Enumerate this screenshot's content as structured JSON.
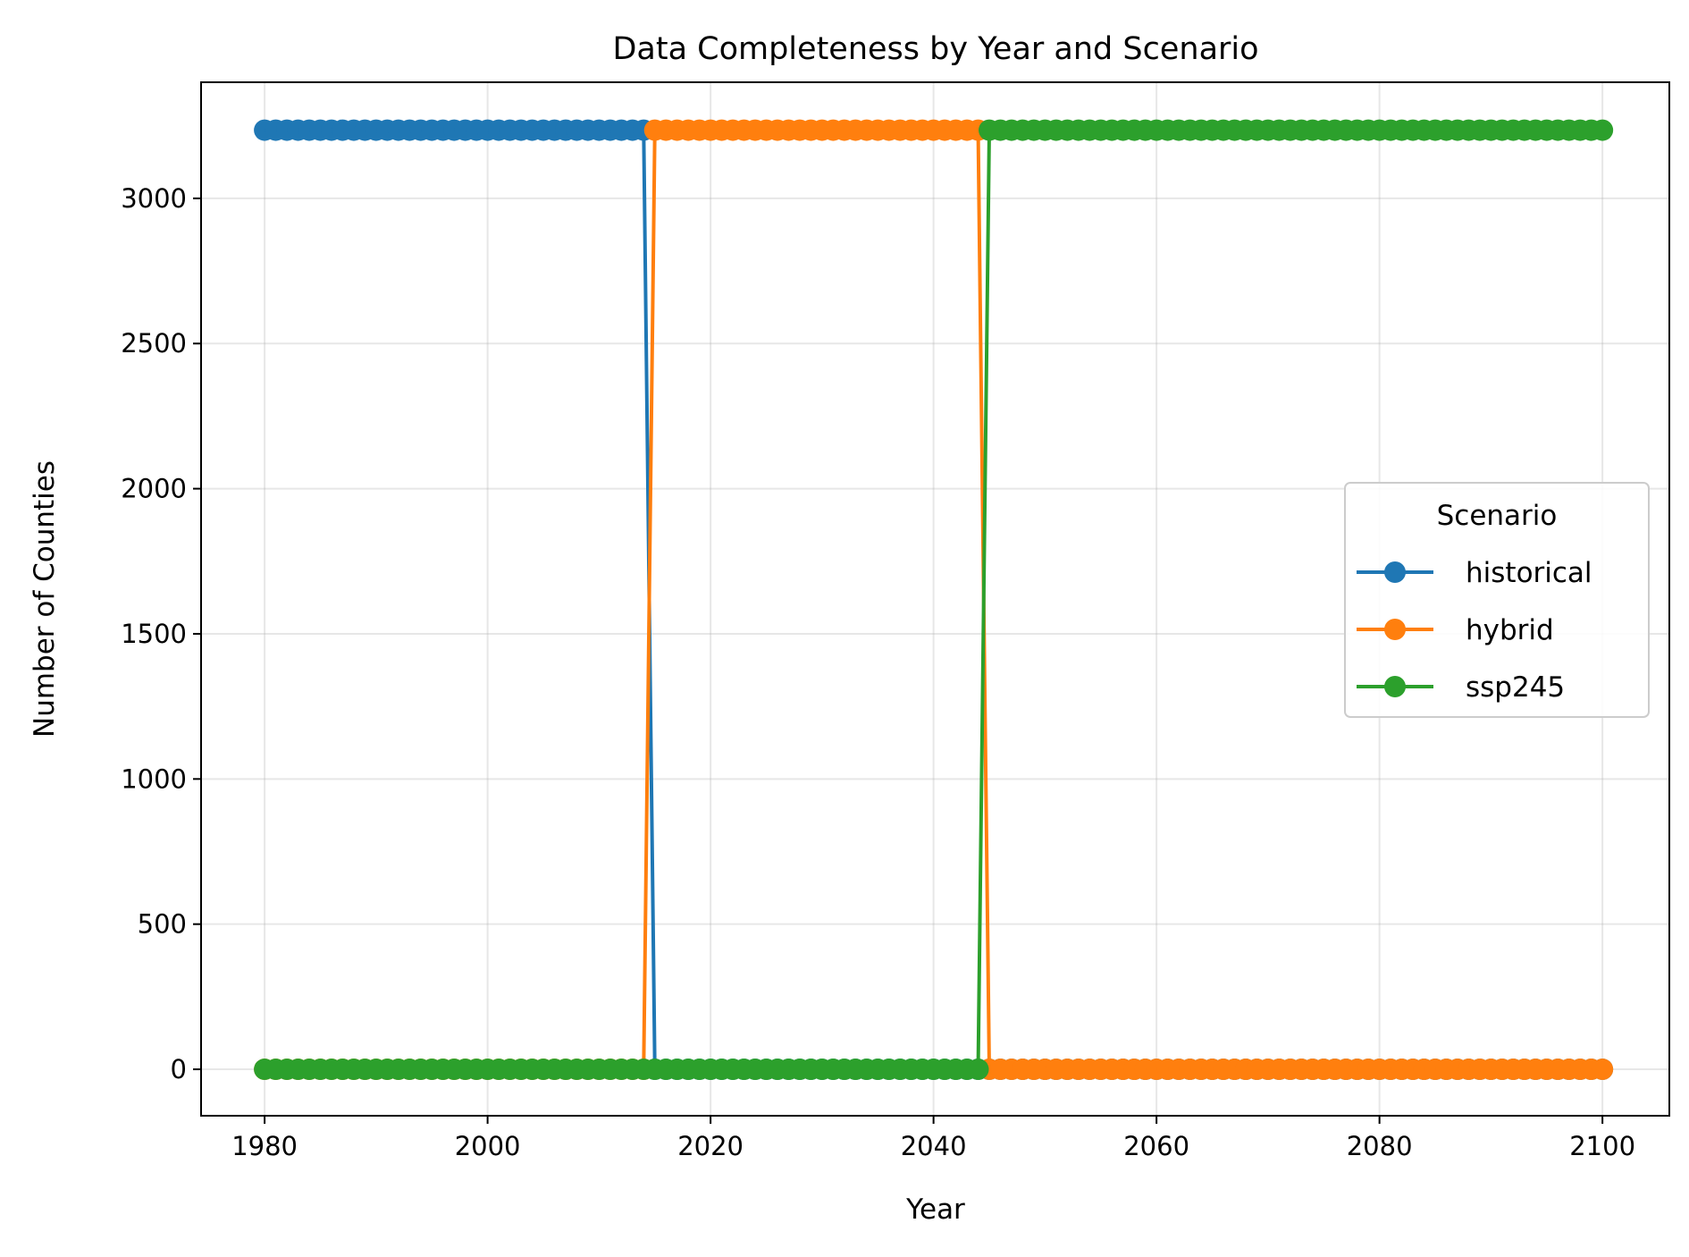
{
  "chart_data": {
    "type": "line",
    "title": "Data Completeness by Year and Scenario",
    "xlabel": "Year",
    "ylabel": "Number of Counties",
    "xlim": [
      1974.3,
      2106
    ],
    "ylim": [
      -160,
      3400
    ],
    "xticks": [
      1980,
      2000,
      2020,
      2040,
      2060,
      2080,
      2100
    ],
    "yticks": [
      0,
      500,
      1000,
      1500,
      2000,
      2500,
      3000
    ],
    "grid": true,
    "legend": {
      "title": "Scenario",
      "placement": "center-right"
    },
    "series": [
      {
        "name": "historical",
        "color": "#1f77b4",
        "x_start": 1980,
        "x_end": 2100,
        "segments": [
          {
            "from": 1980,
            "to": 2014,
            "value": 3235
          },
          {
            "from": 2015,
            "to": 2100,
            "value": 0
          }
        ]
      },
      {
        "name": "hybrid",
        "color": "#ff7f0e",
        "x_start": 1980,
        "x_end": 2100,
        "segments": [
          {
            "from": 1980,
            "to": 2014,
            "value": 0
          },
          {
            "from": 2015,
            "to": 2044,
            "value": 3235
          },
          {
            "from": 2045,
            "to": 2100,
            "value": 0
          }
        ]
      },
      {
        "name": "ssp245",
        "color": "#2ca02c",
        "x_start": 1980,
        "x_end": 2100,
        "segments": [
          {
            "from": 1980,
            "to": 2044,
            "value": 0
          },
          {
            "from": 2045,
            "to": 2100,
            "value": 3235
          }
        ]
      }
    ]
  }
}
